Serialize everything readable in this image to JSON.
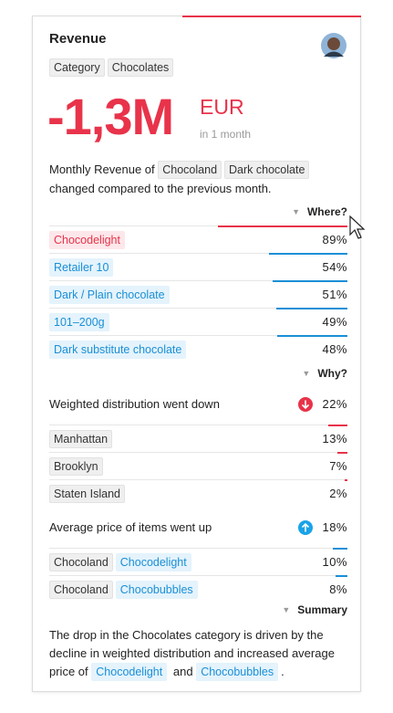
{
  "header": {
    "title": "Revenue",
    "tags": [
      "Category",
      "Chocolates"
    ]
  },
  "headline": {
    "value": "-1,3M",
    "unit": "EUR",
    "period": "in 1 month"
  },
  "description": {
    "prefix": "Monthly Revenue of",
    "tags": [
      "Chocoland",
      "Dark chocolate"
    ],
    "suffix": "changed compared to the previous month."
  },
  "where": {
    "toggle": "Where?",
    "rows": [
      {
        "tags": [
          {
            "text": "Chocodelight",
            "color": "#e8334a"
          }
        ],
        "value": 89,
        "value_label": "89%",
        "bar_color": "#e8334a"
      },
      {
        "tags": [
          {
            "text": "Retailer 10",
            "color": "#1a8fd6"
          }
        ],
        "value": 54,
        "value_label": "54%",
        "bar_color": "#1a8fd6"
      },
      {
        "tags": [
          {
            "text": "Dark / Plain chocolate",
            "color": "#1a8fd6"
          }
        ],
        "value": 51,
        "value_label": "51%",
        "bar_color": "#1a8fd6"
      },
      {
        "tags": [
          {
            "text": "101–200g",
            "color": "#1a8fd6"
          }
        ],
        "value": 49,
        "value_label": "49%",
        "bar_color": "#1a8fd6"
      },
      {
        "tags": [
          {
            "text": "Dark substitute chocolate",
            "color": "#1a8fd6"
          }
        ],
        "value": 48,
        "value_label": "48%",
        "bar_color": "#1a8fd6"
      }
    ]
  },
  "why": {
    "toggle": "Why?",
    "factors": [
      {
        "text": "Weighted distribution went down",
        "value": 22,
        "value_label": "22%",
        "icon_color": "#e8334a",
        "direction": "down",
        "rows": [
          {
            "tags": [
              {
                "text": "Manhattan",
                "color": "#333333"
              }
            ],
            "value": 13,
            "value_label": "13%",
            "bar_color": "#e8334a"
          },
          {
            "tags": [
              {
                "text": "Brooklyn",
                "color": "#333333"
              }
            ],
            "value": 7,
            "value_label": "7%",
            "bar_color": "#e8334a"
          },
          {
            "tags": [
              {
                "text": "Staten Island",
                "color": "#333333"
              }
            ],
            "value": 2,
            "value_label": "2%",
            "bar_color": "#e8334a"
          }
        ]
      },
      {
        "text": "Average price of items went up",
        "value": 18,
        "value_label": "18%",
        "icon_color": "#1aa3e8",
        "direction": "up",
        "rows": [
          {
            "tags": [
              {
                "text": "Chocoland",
                "color": "#333333"
              },
              {
                "text": "Chocodelight",
                "color": "#1a8fd6"
              }
            ],
            "value": 10,
            "value_label": "10%",
            "bar_color": "#1a8fd6"
          },
          {
            "tags": [
              {
                "text": "Chocoland",
                "color": "#333333"
              },
              {
                "text": "Chocobubbles",
                "color": "#1a8fd6"
              }
            ],
            "value": 8,
            "value_label": "8%",
            "bar_color": "#1a8fd6"
          }
        ]
      }
    ]
  },
  "summary": {
    "toggle": "Summary",
    "text": "The drop in the Chocolates category is driven by the decline in weighted distribution and increased average price of",
    "tags": [
      "Chocodelight",
      "Chocobubbles"
    ],
    "joiner": "and",
    "end": "."
  }
}
